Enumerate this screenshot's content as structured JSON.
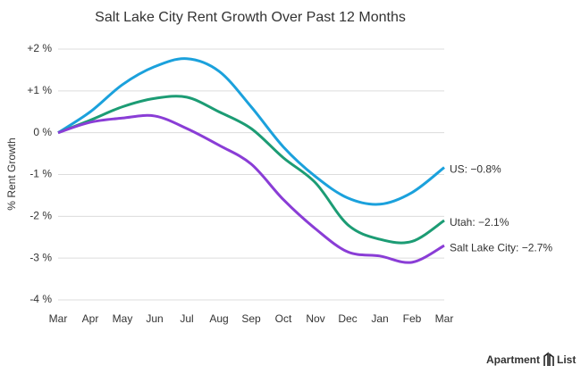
{
  "chart_data": {
    "type": "line",
    "title": "Salt Lake City Rent Growth Over Past 12 Months",
    "y_label": "% Rent Growth",
    "categories": [
      "Mar",
      "Apr",
      "May",
      "Jun",
      "Jul",
      "Aug",
      "Sep",
      "Oct",
      "Nov",
      "Dec",
      "Jan",
      "Feb",
      "Mar"
    ],
    "series": [
      {
        "name": "US: −0.8%",
        "color": "#1ba1dc",
        "values": [
          0,
          0.5,
          1.15,
          1.58,
          1.77,
          1.47,
          0.62,
          -0.34,
          -1.05,
          -1.56,
          -1.71,
          -1.43,
          -0.83
        ]
      },
      {
        "name": "Utah: −2.1%",
        "color": "#1c9c74",
        "values": [
          0,
          0.3,
          0.62,
          0.82,
          0.85,
          0.5,
          0.1,
          -0.6,
          -1.2,
          -2.2,
          -2.55,
          -2.6,
          -2.1
        ]
      },
      {
        "name": "Salt Lake City: −2.7%",
        "color": "#8a3dd6",
        "values": [
          0,
          0.25,
          0.35,
          0.4,
          0.1,
          -0.3,
          -0.75,
          -1.6,
          -2.3,
          -2.85,
          -2.95,
          -3.1,
          -2.7
        ]
      }
    ],
    "ylim": [
      -4,
      2
    ],
    "yticks": [
      {
        "value": 2,
        "label": "+2 %"
      },
      {
        "value": 1,
        "label": "+1 %"
      },
      {
        "value": 0,
        "label": "0 %"
      },
      {
        "value": -1,
        "label": "-1 %"
      },
      {
        "value": -2,
        "label": "-2 %"
      },
      {
        "value": -3,
        "label": "-3 %"
      },
      {
        "value": -4,
        "label": "-4 %"
      }
    ],
    "grid": true
  },
  "footer": {
    "brand_left": "Apartment",
    "brand_right": "List"
  }
}
